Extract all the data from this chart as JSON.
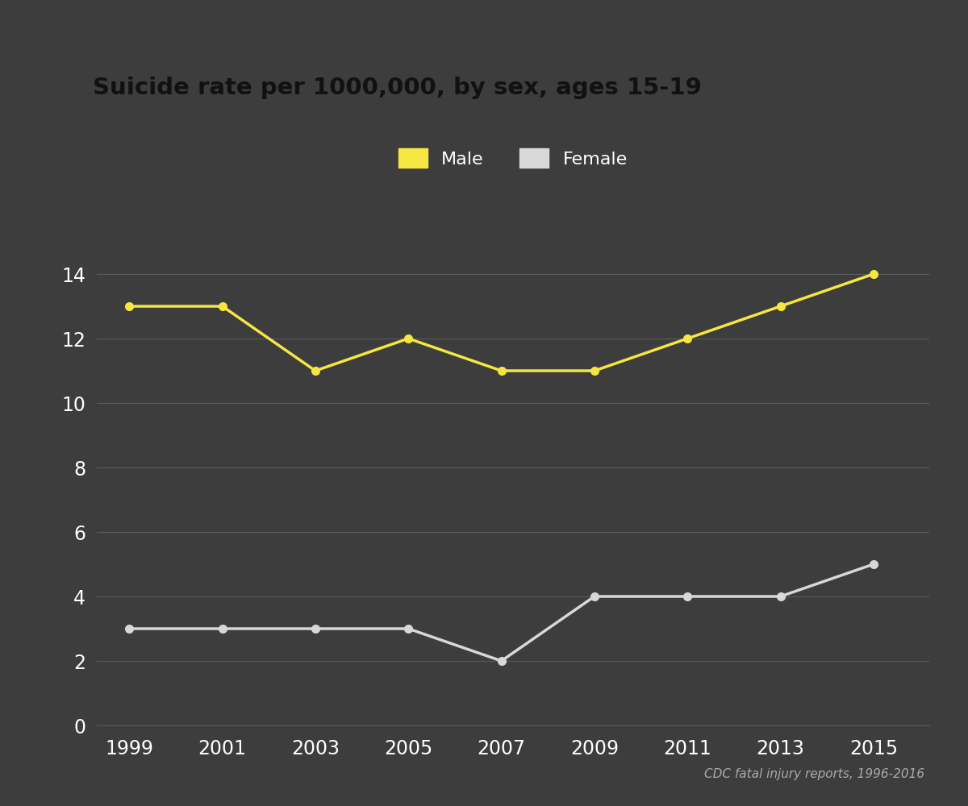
{
  "title": "Suicide rate per 1000,000, by sex, ages 15-19",
  "title_bg_color": "#F5E642",
  "title_text_color": "#111111",
  "background_color": "#3d3d3d",
  "plot_bg_color": "#3d3d3d",
  "years": [
    1999,
    2001,
    2003,
    2005,
    2007,
    2009,
    2011,
    2013,
    2015
  ],
  "male_values": [
    13,
    13,
    11,
    12,
    11,
    11,
    12,
    13,
    14
  ],
  "female_values": [
    3,
    3,
    3,
    3,
    2,
    4,
    4,
    4,
    5
  ],
  "male_color": "#F5E642",
  "female_color": "#d8d8d8",
  "grid_color": "#5a5a5a",
  "tick_label_color": "#ffffff",
  "legend_label_color": "#ffffff",
  "source_text": "CDC fatal injury reports, 1996-2016",
  "source_color": "#aaaaaa",
  "yticks": [
    0,
    2,
    4,
    6,
    8,
    10,
    12,
    14
  ],
  "ylim": [
    0,
    15.5
  ],
  "xlim": [
    1998.3,
    2016.2
  ],
  "line_width": 2.5,
  "marker_size": 7,
  "legend_fontsize": 16,
  "tick_fontsize": 17
}
